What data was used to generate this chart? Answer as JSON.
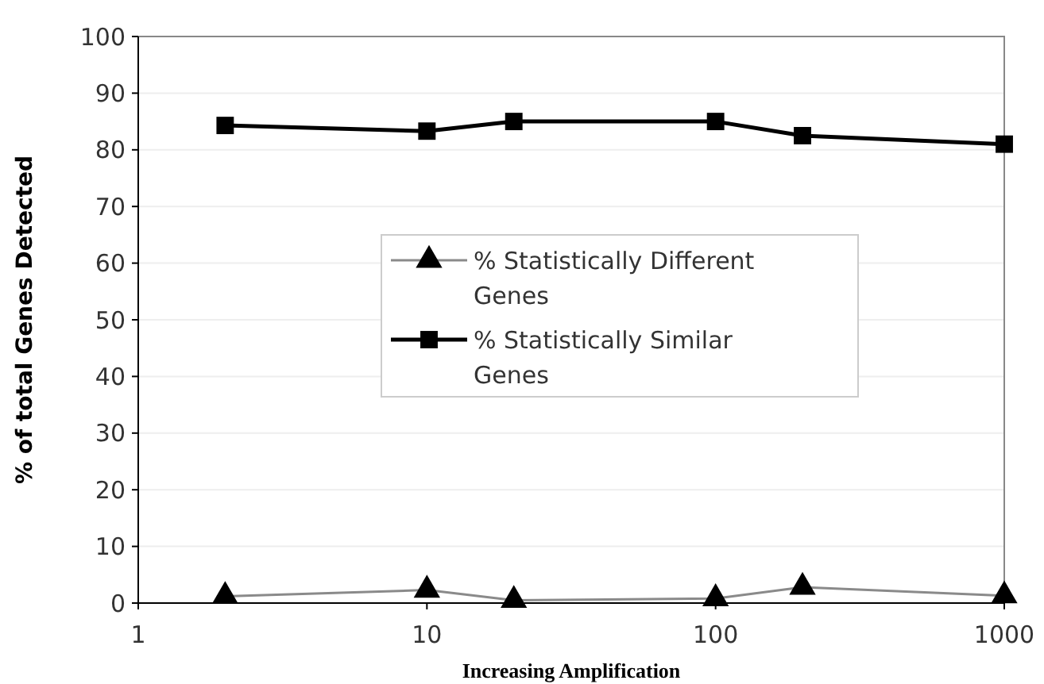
{
  "chart_data": {
    "type": "line",
    "xlabel": "Increasing Amplification",
    "ylabel": "% of total Genes Detected",
    "log": "x",
    "x": [
      2,
      10,
      20,
      100,
      200,
      1000
    ],
    "xlim": [
      1,
      1000
    ],
    "xticks": [
      1,
      10,
      100,
      1000
    ],
    "ylim": [
      0,
      100
    ],
    "yticks": [
      0,
      10,
      20,
      30,
      40,
      50,
      60,
      70,
      80,
      90,
      100
    ],
    "grid": "y",
    "legend": "center",
    "series": [
      {
        "name": "% Statistically Different Genes",
        "color": "#000000",
        "values": [
          1.2,
          2.3,
          0.5,
          0.8,
          2.8,
          1.3
        ],
        "marker": "triangle"
      },
      {
        "name": "% Statistically Similar Genes",
        "color": "#000000",
        "values": [
          84.3,
          83.3,
          85,
          85,
          82.5,
          81
        ],
        "marker": "square"
      }
    ]
  }
}
